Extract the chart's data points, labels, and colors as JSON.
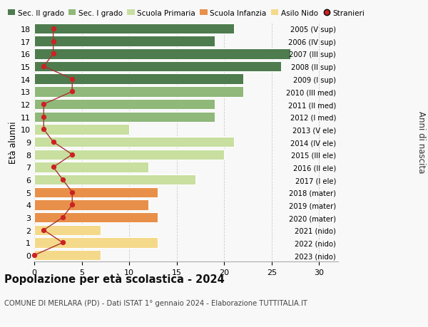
{
  "ages": [
    0,
    1,
    2,
    3,
    4,
    5,
    6,
    7,
    8,
    9,
    10,
    11,
    12,
    13,
    14,
    15,
    16,
    17,
    18
  ],
  "right_labels": [
    "2023 (nido)",
    "2022 (nido)",
    "2021 (nido)",
    "2020 (mater)",
    "2019 (mater)",
    "2018 (mater)",
    "2017 (I ele)",
    "2016 (II ele)",
    "2015 (III ele)",
    "2014 (IV ele)",
    "2013 (V ele)",
    "2012 (I med)",
    "2011 (II med)",
    "2010 (III med)",
    "2009 (I sup)",
    "2008 (II sup)",
    "2007 (III sup)",
    "2006 (IV sup)",
    "2005 (V sup)"
  ],
  "bar_values": [
    7,
    13,
    7,
    13,
    12,
    13,
    17,
    12,
    20,
    21,
    10,
    19,
    19,
    22,
    22,
    26,
    27,
    19,
    21
  ],
  "stranieri": [
    0,
    3,
    1,
    3,
    4,
    4,
    3,
    2,
    4,
    2,
    1,
    1,
    1,
    4,
    4,
    1,
    2,
    2,
    2
  ],
  "bar_colors": [
    "#f5d98a",
    "#f5d98a",
    "#f5d98a",
    "#e8904a",
    "#e8904a",
    "#e8904a",
    "#c8dfa0",
    "#c8dfa0",
    "#c8dfa0",
    "#c8dfa0",
    "#c8dfa0",
    "#8fb87a",
    "#8fb87a",
    "#8fb87a",
    "#4e7c4e",
    "#4e7c4e",
    "#4e7c4e",
    "#4e7c4e",
    "#4e7c4e"
  ],
  "legend_labels": [
    "Sec. II grado",
    "Sec. I grado",
    "Scuola Primaria",
    "Scuola Infanzia",
    "Asilo Nido",
    "Stranieri"
  ],
  "legend_colors": [
    "#4e7c4e",
    "#8fb87a",
    "#c8dfa0",
    "#e8904a",
    "#f5d98a",
    "#cc2222"
  ],
  "title": "Popolazione per età scolastica - 2024",
  "subtitle": "COMUNE DI MERLARA (PD) - Dati ISTAT 1° gennaio 2024 - Elaborazione TUTTITALIA.IT",
  "ylabel": "Età alunni",
  "right_ylabel": "Anni di nascita",
  "xlim": [
    0,
    32
  ],
  "xticks": [
    0,
    5,
    10,
    15,
    20,
    25,
    30
  ],
  "background_color": "#f8f8f8",
  "stranieri_color": "#cc2222",
  "stranieri_line_color": "#aa3333",
  "bar_height": 0.82
}
